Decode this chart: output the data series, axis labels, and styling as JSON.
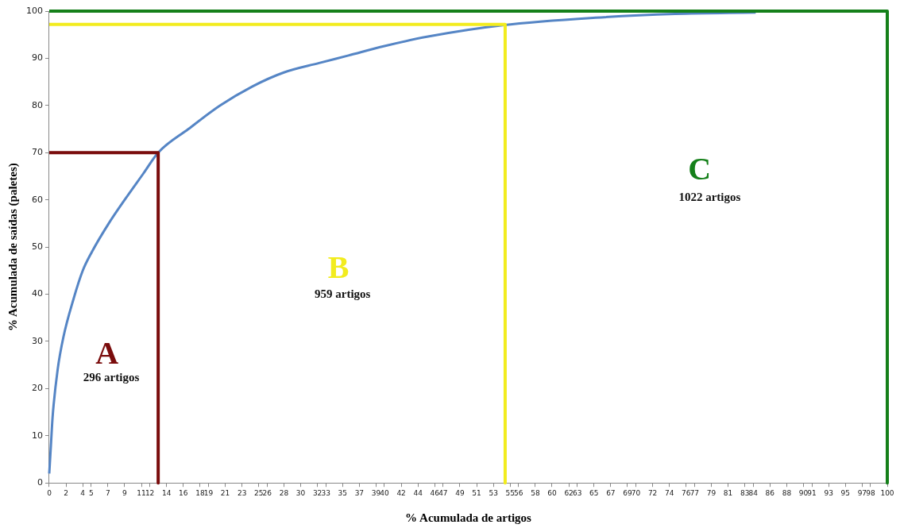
{
  "chart_data": {
    "type": "line",
    "xlabel": "% Acumulada de artigos",
    "ylabel": "% Acumulada de saídas (paletes)",
    "xlim": [
      0,
      100
    ],
    "ylim": [
      0,
      100
    ],
    "yticks": [
      0,
      10,
      20,
      30,
      40,
      50,
      60,
      70,
      80,
      90,
      100
    ],
    "xticks": [
      0,
      2,
      4,
      5,
      7,
      9,
      11,
      12,
      14,
      16,
      18,
      19,
      21,
      23,
      25,
      26,
      28,
      30,
      32,
      33,
      35,
      37,
      39,
      40,
      42,
      44,
      46,
      47,
      49,
      51,
      53,
      55,
      56,
      58,
      60,
      62,
      63,
      65,
      67,
      69,
      70,
      72,
      74,
      76,
      77,
      79,
      81,
      83,
      84,
      86,
      88,
      90,
      91,
      93,
      95,
      97,
      98,
      100
    ],
    "series": [
      {
        "color": "#5585c5",
        "x": [
          0,
          0.2,
          0.4,
          1,
          1.7,
          2.9,
          4,
          5.1,
          7.1,
          9,
          11.2,
          13,
          16.6,
          20.4,
          24.2,
          28,
          32.2,
          35.7,
          40,
          45.2,
          54.1,
          65.2,
          74.7,
          84.3
        ],
        "values": [
          2,
          8,
          14,
          24,
          31,
          39,
          45,
          49,
          55,
          60,
          65.5,
          70,
          75,
          80,
          84,
          87,
          89,
          90.6,
          92.6,
          94.6,
          97,
          98.6,
          99.4,
          99.7
        ]
      },
      {
        "name": "A",
        "color": "#7a0c0c",
        "x": [
          0,
          13,
          13
        ],
        "values": [
          70,
          70,
          0
        ]
      },
      {
        "name": "B",
        "color": "#f2ec1e",
        "x": [
          0,
          54.4,
          54.4
        ],
        "values": [
          97.2,
          97.2,
          0
        ]
      },
      {
        "name": "C",
        "color": "#15801a",
        "x": [
          0,
          100,
          100
        ],
        "values": [
          100,
          100,
          0
        ]
      }
    ],
    "annotations": [
      "296 artigos",
      "959 artigos",
      "1022 artigos"
    ],
    "grid": false,
    "legend": false,
    "marker": "none",
    "line_style": "solid"
  }
}
